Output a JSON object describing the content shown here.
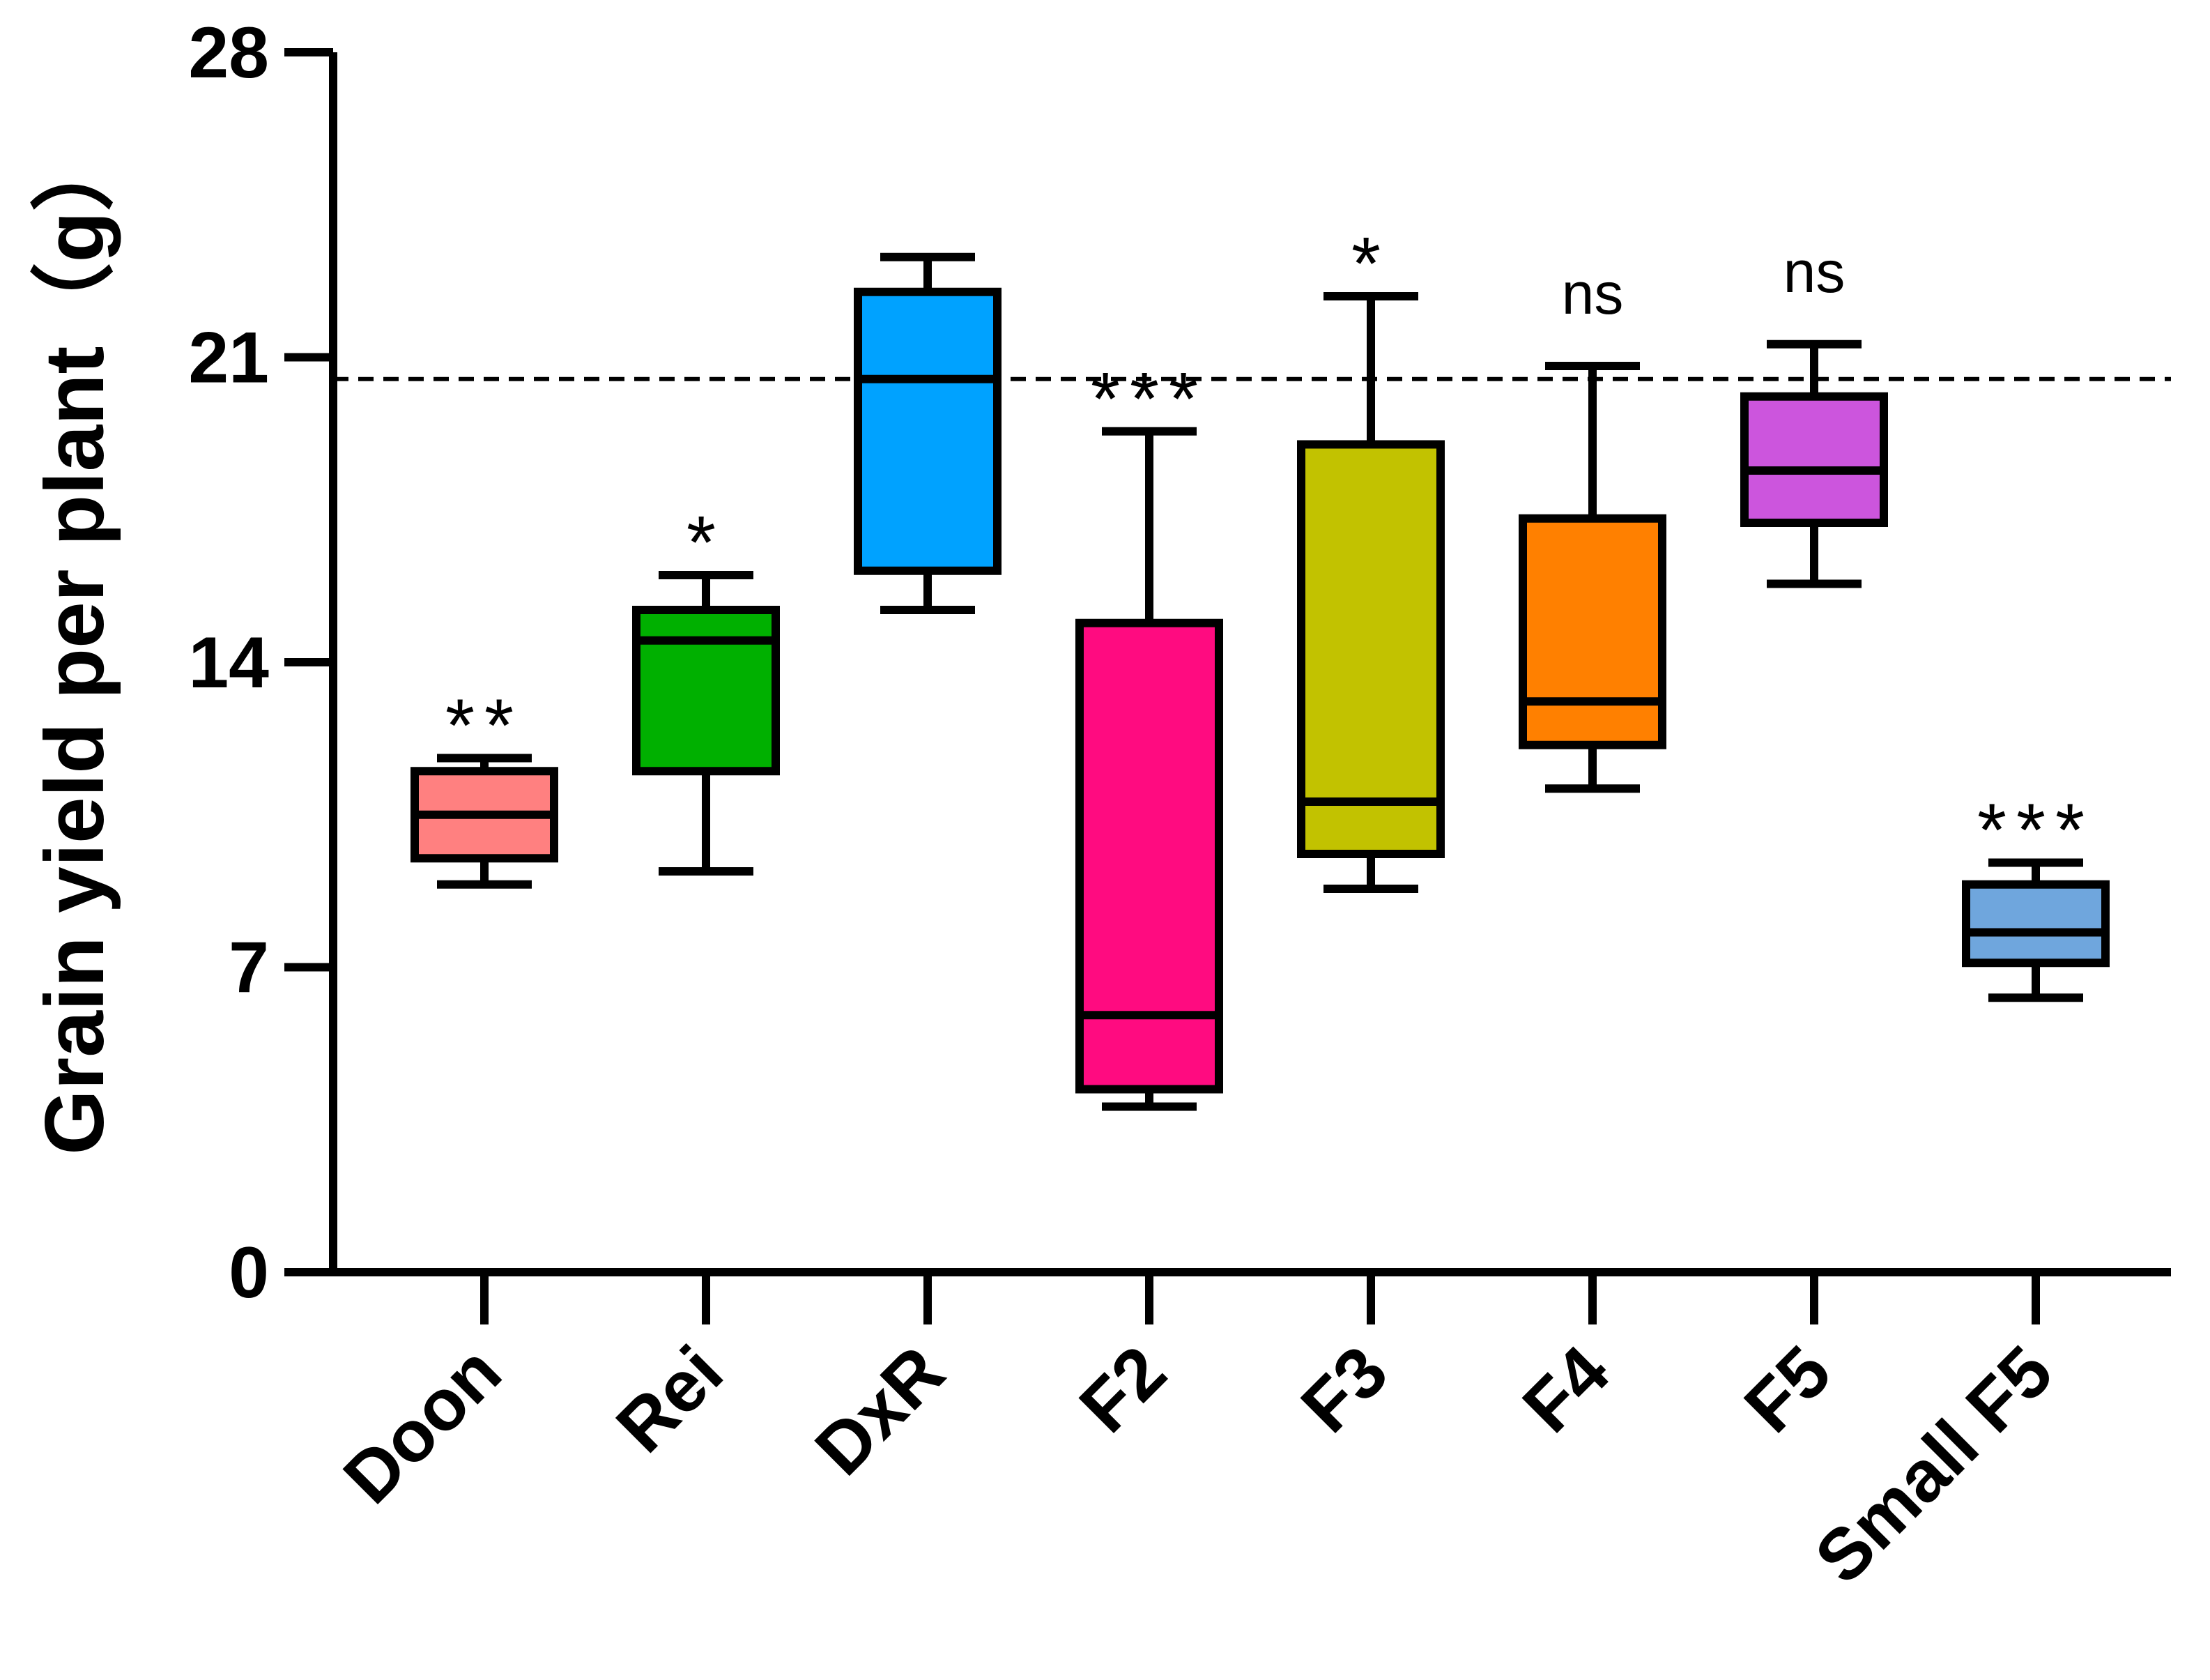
{
  "chart_data": {
    "type": "box",
    "title": "",
    "xlabel": "",
    "ylabel": "Grain yield per plant（g）",
    "ylim": [
      0,
      28
    ],
    "yticks": [
      "0",
      "7",
      "14",
      "21",
      "28"
    ],
    "reference_line": {
      "value": 20.5,
      "style": "dashed"
    },
    "categories": [
      "Doon",
      "Rei",
      "DxR",
      "F2",
      "F3",
      "F4",
      "F5",
      "Small F5"
    ],
    "boxes": [
      {
        "name": "Doon",
        "min": 8.9,
        "q1": 9.5,
        "median": 10.5,
        "q3": 11.5,
        "max": 11.8,
        "color": "#FF8080",
        "significance": "**"
      },
      {
        "name": "Rei",
        "min": 9.2,
        "q1": 11.5,
        "median": 14.5,
        "q3": 15.2,
        "max": 16.0,
        "color": "#00B000",
        "significance": "*"
      },
      {
        "name": "DxR",
        "min": 15.2,
        "q1": 16.1,
        "median": 20.5,
        "q3": 22.5,
        "max": 23.3,
        "color": "#00A2FF",
        "significance": ""
      },
      {
        "name": "F2",
        "min": 3.8,
        "q1": 4.2,
        "median": 5.9,
        "q3": 14.9,
        "max": 19.3,
        "color": "#FF0B80",
        "significance": "***"
      },
      {
        "name": "F3",
        "min": 8.8,
        "q1": 9.6,
        "median": 10.8,
        "q3": 19.0,
        "max": 22.4,
        "color": "#C2C200",
        "significance": "*"
      },
      {
        "name": "F4",
        "min": 11.1,
        "q1": 12.1,
        "median": 13.1,
        "q3": 17.3,
        "max": 20.8,
        "color": "#FF8000",
        "significance": "ns"
      },
      {
        "name": "F5",
        "min": 15.8,
        "q1": 17.2,
        "median": 18.4,
        "q3": 20.1,
        "max": 21.3,
        "color": "#CC55DD",
        "significance": "ns"
      },
      {
        "name": "Small F5",
        "min": 6.3,
        "q1": 7.1,
        "median": 7.8,
        "q3": 8.9,
        "max": 9.4,
        "color": "#6FA6DD",
        "significance": "***"
      }
    ]
  }
}
